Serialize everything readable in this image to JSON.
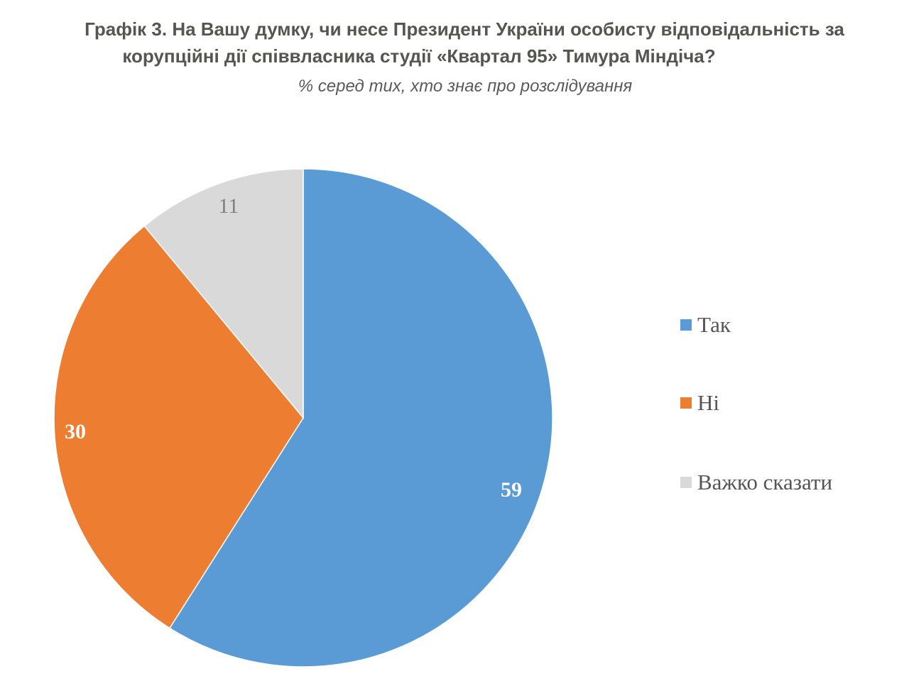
{
  "header": {
    "title_line1": "Графік 3. На Вашу думку, чи несе Президент України особисту відповідальність за",
    "title_line2": "корупційні дії співвласника студії «Квартал 95» Тимура Міндіча?",
    "subtitle": "% серед тих, хто знає про розслідування"
  },
  "legend": [
    {
      "label": "Так",
      "color": "#5b9bd5"
    },
    {
      "label": "Ні",
      "color": "#ed7d31"
    },
    {
      "label": "Важко сказати",
      "color": "#d9d9d9"
    }
  ],
  "labels": {
    "tak": "59",
    "ni": "30",
    "vazhko": "11"
  },
  "chart_data": {
    "type": "pie",
    "title": "Графік 3. На Вашу думку, чи несе Президент України особисту відповідальність за корупційні дії співвласника студії «Квартал 95» Тимура Міндіча?",
    "subtitle": "% серед тих, хто знає про розслідування",
    "categories": [
      "Так",
      "Ні",
      "Важко сказати"
    ],
    "values": [
      59,
      30,
      11
    ],
    "colors": [
      "#5b9bd5",
      "#ed7d31",
      "#d9d9d9"
    ],
    "start_angle": "12 o'clock, clockwise",
    "legend_position": "right",
    "data_labels": true
  }
}
